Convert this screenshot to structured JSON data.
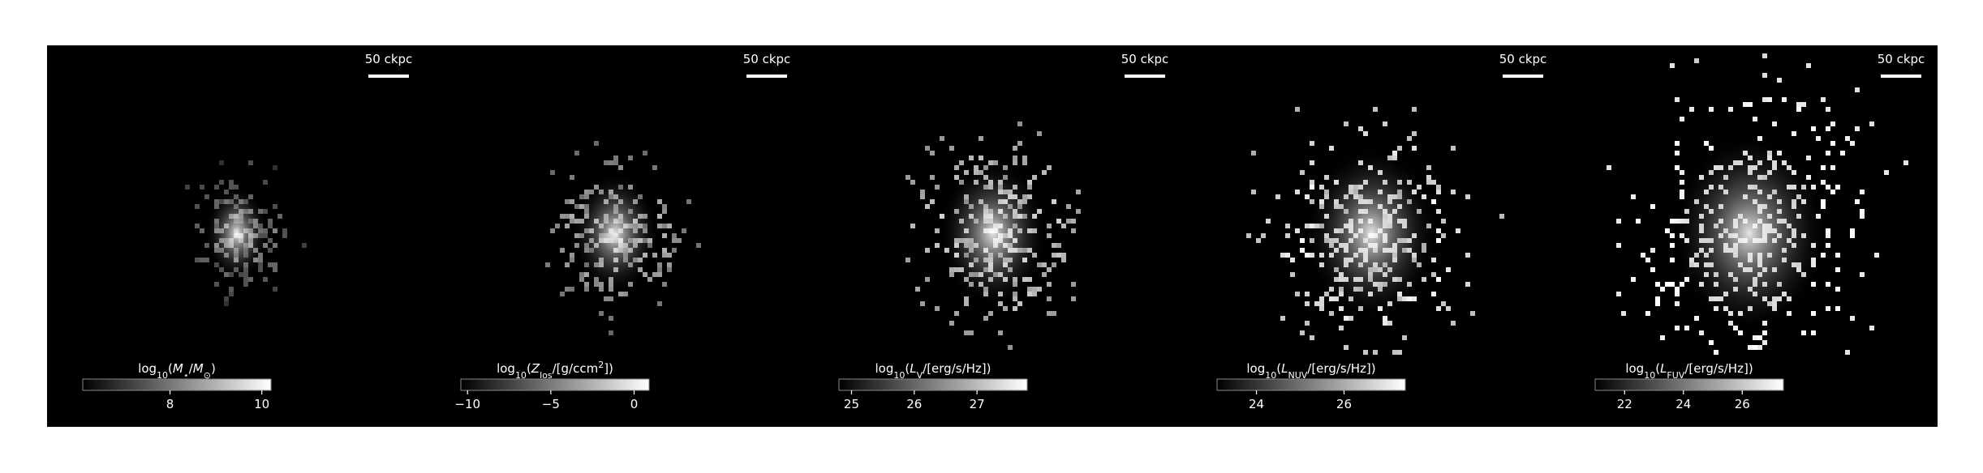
{
  "panels": [
    {
      "scale_label": "50 ckpc",
      "label": [
        {
          "text": "log"
        },
        {
          "text": "10",
          "sub": true
        },
        {
          "text": "("
        },
        {
          "text": "M",
          "italic": true
        },
        {
          "text": "⋆",
          "sub": true
        },
        {
          "text": "/"
        },
        {
          "text": "M",
          "italic": true
        },
        {
          "text": "⊙",
          "sub": true
        },
        {
          "text": ")"
        }
      ],
      "clim": [
        6.1,
        10.2
      ],
      "ticks": [
        8,
        10
      ]
    },
    {
      "scale_label": "50 ckpc",
      "label": [
        {
          "text": "log"
        },
        {
          "text": "10",
          "sub": true
        },
        {
          "text": "("
        },
        {
          "text": "Z",
          "italic": true
        },
        {
          "text": "los",
          "sub": true
        },
        {
          "text": "/[g/ccm"
        },
        {
          "text": "2",
          "sup": true
        },
        {
          "text": "])"
        }
      ],
      "clim": [
        -10.4,
        0.9
      ],
      "ticks": [
        {
          "value": -10,
          "label": "−10"
        },
        {
          "value": -5,
          "label": "−5"
        },
        0
      ]
    },
    {
      "scale_label": "50 ckpc",
      "label": [
        {
          "text": "log"
        },
        {
          "text": "10",
          "sub": true
        },
        {
          "text": "("
        },
        {
          "text": "L",
          "italic": true
        },
        {
          "text": "V",
          "sub": true
        },
        {
          "text": "/[erg/s/Hz])"
        }
      ],
      "clim": [
        24.8,
        27.8
      ],
      "ticks": [
        25,
        26,
        27
      ]
    },
    {
      "scale_label": "50 ckpc",
      "label": [
        {
          "text": "log"
        },
        {
          "text": "10",
          "sub": true
        },
        {
          "text": "("
        },
        {
          "text": "L",
          "italic": true
        },
        {
          "text": "NUV",
          "sub": true
        },
        {
          "text": "/[erg/s/Hz])"
        }
      ],
      "clim": [
        23.1,
        27.4
      ],
      "ticks": [
        24,
        26
      ]
    },
    {
      "scale_label": "50 ckpc",
      "label": [
        {
          "text": "log"
        },
        {
          "text": "10",
          "sub": true
        },
        {
          "text": "("
        },
        {
          "text": "L",
          "italic": true
        },
        {
          "text": "FUV",
          "sub": true
        },
        {
          "text": "/[erg/s/Hz])"
        }
      ],
      "clim": [
        21.0,
        27.4
      ],
      "ticks": [
        22,
        24,
        26
      ]
    }
  ]
}
